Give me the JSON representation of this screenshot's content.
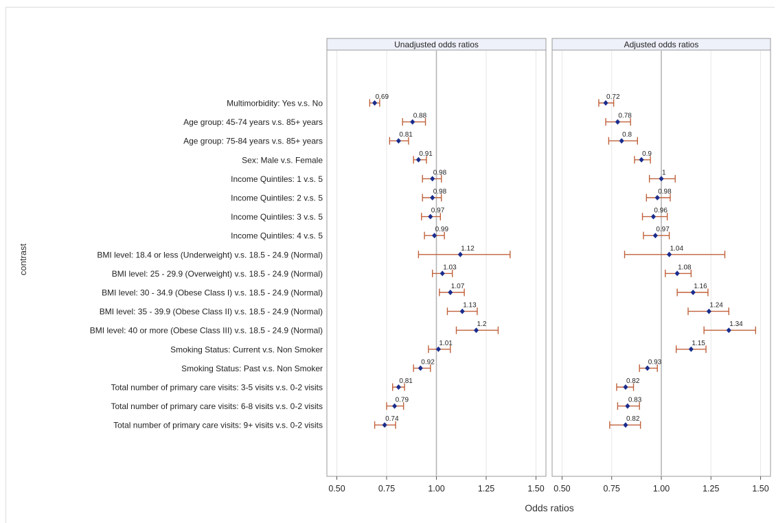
{
  "chart_data": {
    "type": "forest",
    "ylabel": "contrast",
    "xlabel": "Odds ratios",
    "xlim": [
      0.45,
      1.55
    ],
    "xticks": [
      "0.50",
      "0.75",
      "1.00",
      "1.25",
      "1.50"
    ],
    "reference_line": 1.0,
    "categories": [
      "Multimorbidity: Yes v.s. No",
      "Age group: 45-74 years v.s. 85+ years",
      "Age group: 75-84 years v.s. 85+ years",
      "Sex: Male v.s. Female",
      "Income Quintiles: 1 v.s. 5",
      "Income Quintiles: 2 v.s. 5",
      "Income Quintiles: 3 v.s. 5",
      "Income Quintiles: 4 v.s. 5",
      "BMI level: 18.4 or less (Underweight) v.s. 18.5 - 24.9 (Normal)",
      "BMI level: 25 - 29.9 (Overweight) v.s. 18.5 - 24.9 (Normal)",
      "BMI level: 30 - 34.9 (Obese Class I) v.s. 18.5 - 24.9 (Normal)",
      "BMI level: 35 - 39.9 (Obese Class II) v.s. 18.5 - 24.9 (Normal)",
      "BMI level: 40 or more (Obese Class III) v.s. 18.5 - 24.9 (Normal)",
      "Smoking Status: Current v.s. Non Smoker",
      "Smoking Status: Past v.s. Non Smoker",
      "Total number of primary care visits: 3-5 visits v.s. 0-2 visits",
      "Total number of primary care visits: 6-8 visits v.s. 0-2 visits",
      "Total number of primary care visits: 9+ visits v.s. 0-2 visits"
    ],
    "panels": [
      {
        "title": "Unadjusted odds ratios",
        "estimates": [
          0.69,
          0.88,
          0.81,
          0.91,
          0.98,
          0.98,
          0.97,
          0.99,
          1.12,
          1.03,
          1.07,
          1.13,
          1.2,
          1.01,
          0.92,
          0.81,
          0.79,
          0.74
        ],
        "labels": [
          "0.69",
          "0.88",
          "0.81",
          "0.91",
          "0.98",
          "0.98",
          "0.97",
          "0.99",
          "1.12",
          "1.03",
          "1.07",
          "1.13",
          "1.2",
          "1.01",
          "0.92",
          "0.81",
          "0.79",
          "0.74"
        ],
        "lower": [
          0.665,
          0.83,
          0.765,
          0.885,
          0.93,
          0.93,
          0.925,
          0.94,
          0.91,
          0.98,
          1.015,
          1.055,
          1.1,
          0.96,
          0.885,
          0.78,
          0.75,
          0.69
        ],
        "upper": [
          0.715,
          0.945,
          0.86,
          0.95,
          1.025,
          1.025,
          1.02,
          1.04,
          1.37,
          1.08,
          1.14,
          1.205,
          1.31,
          1.07,
          0.97,
          0.84,
          0.835,
          0.795
        ]
      },
      {
        "title": "Adjusted odds ratios",
        "estimates": [
          0.72,
          0.78,
          0.8,
          0.9,
          1.0,
          0.98,
          0.96,
          0.97,
          1.04,
          1.08,
          1.16,
          1.24,
          1.34,
          1.15,
          0.93,
          0.82,
          0.83,
          0.82
        ],
        "labels": [
          "0.72",
          "0.78",
          "0.8",
          "0.9",
          "1",
          "0.98",
          "0.96",
          "0.97",
          "1.04",
          "1.08",
          "1.16",
          "1.24",
          "1.34",
          "1.15",
          "0.93",
          "0.82",
          "0.83",
          "0.82"
        ],
        "lower": [
          0.685,
          0.72,
          0.735,
          0.865,
          0.94,
          0.925,
          0.905,
          0.91,
          0.815,
          1.02,
          1.08,
          1.135,
          1.215,
          1.075,
          0.89,
          0.775,
          0.78,
          0.74
        ],
        "upper": [
          0.76,
          0.845,
          0.88,
          0.945,
          1.07,
          1.045,
          1.03,
          1.04,
          1.32,
          1.15,
          1.235,
          1.34,
          1.475,
          1.225,
          0.98,
          0.86,
          0.89,
          0.895
        ]
      }
    ],
    "colors": {
      "point": "#1a2d8c",
      "ci": "#c0603a",
      "grid": "#e6e6e6",
      "refline": "#b5b5b5",
      "strip": "#eef0fa"
    }
  }
}
